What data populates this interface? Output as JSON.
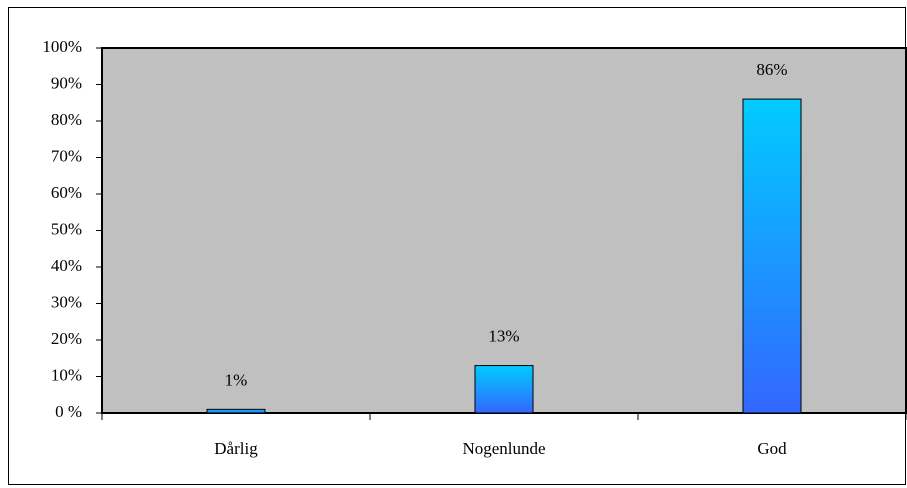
{
  "chart_data": {
    "type": "bar",
    "categories": [
      "Dårlig",
      "Nogenlunde",
      "God"
    ],
    "values": [
      1,
      13,
      86
    ],
    "value_labels": [
      "1%",
      "13%",
      "86%"
    ],
    "color": [
      "#00ccff",
      "#3366ff"
    ],
    "ylim": [
      0,
      100
    ],
    "yticks": [
      {
        "value": 0,
        "label": "0 %"
      },
      {
        "value": 10,
        "label": "10%"
      },
      {
        "value": 20,
        "label": "20%"
      },
      {
        "value": 30,
        "label": "30%"
      },
      {
        "value": 40,
        "label": "40%"
      },
      {
        "value": 50,
        "label": "50%"
      },
      {
        "value": 60,
        "label": "60%"
      },
      {
        "value": 70,
        "label": "70%"
      },
      {
        "value": 80,
        "label": "80%"
      },
      {
        "value": 90,
        "label": "90%"
      },
      {
        "value": 100,
        "label": "100%"
      }
    ],
    "plot_background": "#c0c0c0"
  }
}
